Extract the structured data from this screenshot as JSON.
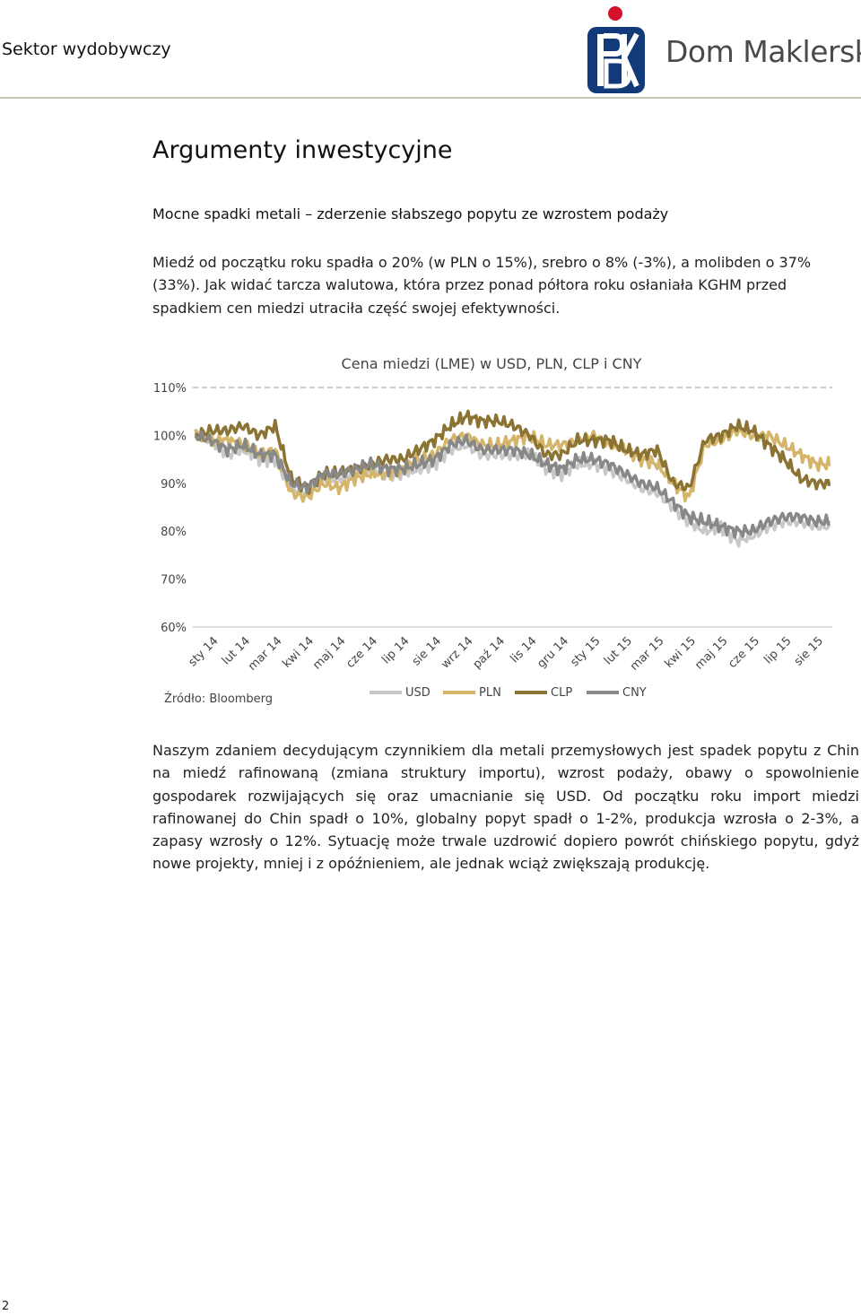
{
  "header": {
    "section": "Sektor wydobywczy",
    "brand": "Dom Maklerski",
    "logo_icon": "pko-logo-icon"
  },
  "title": "Argumenty inwestycyjne",
  "subheading": "Mocne spadki metali – zderzenie słabszego popytu ze wzrostem podaży",
  "paragraph1": "Miedź od początku roku spadła o 20% (w PLN o 15%), srebro o 8% (-3%), a molibden o 37% (33%). Jak widać tarcza walutowa, która przez ponad półtora roku osłaniała KGHM przed spadkiem cen miedzi utraciła część swojej efektywności.",
  "paragraph2": "Naszym zdaniem decydującym czynnikiem dla metali przemysłowych jest spadek popytu z Chin na miedź rafinowaną (zmiana struktury importu), wzrost podaży, obawy o spowolnienie gospodarek rozwijających się oraz umacnianie się USD. Od początku roku import miedzi rafinowanej do Chin spadł o 10%, globalny popyt spadł o 1-2%, produkcja wzrosła o 2-3%, a zapasy wzrosły o 12%. Sytuację może trwale uzdrowić dopiero powrót chińskiego popytu, gdyż nowe projekty, mniej i z opóźnieniem, ale jednak wciąż zwiększają produkcję.",
  "page_number": "2",
  "chart_data": {
    "type": "line",
    "title": "Cena miedzi (LME) w USD, PLN, CLP i CNY",
    "source": "Źródło: Bloomberg",
    "ylim": [
      60,
      110
    ],
    "ytick_values": [
      60,
      70,
      80,
      90,
      100,
      110
    ],
    "yticks": [
      "60%",
      "70%",
      "80%",
      "90%",
      "100%",
      "110%"
    ],
    "grid": "dashed line at 110% only",
    "legend_position": "bottom",
    "categories": [
      "sty 14",
      "lut 14",
      "mar 14",
      "kwi 14",
      "maj 14",
      "cze 14",
      "lip 14",
      "sie 14",
      "wrz 14",
      "paź 14",
      "lis 14",
      "gru 14",
      "sty 15",
      "lut 15",
      "mar 15",
      "kwi 15",
      "maj 15",
      "cze 15",
      "lip 15",
      "sie 15"
    ],
    "x": [
      0,
      0.5,
      1,
      1.5,
      2,
      2.5,
      3,
      3.5,
      4,
      4.5,
      5,
      5.5,
      6,
      6.5,
      7,
      7.5,
      8,
      8.5,
      9,
      9.5,
      10,
      10.5,
      11,
      11.5,
      12,
      12.5,
      13,
      13.5,
      14,
      14.5,
      15,
      15.5,
      16,
      16.5,
      17,
      17.5,
      18,
      18.5,
      19,
      19.5
    ],
    "series": [
      {
        "name": "USD",
        "color": "#c8c8c8",
        "values": [
          100,
          99,
          96,
          97,
          95,
          95,
          89,
          88,
          91,
          91,
          92,
          93,
          92,
          92,
          93,
          94,
          97,
          98,
          96,
          96,
          96,
          96,
          93,
          92,
          94,
          94,
          93,
          91,
          89,
          88,
          85,
          82,
          80,
          81,
          78,
          79,
          81,
          82,
          82,
          81
        ]
      },
      {
        "name": "PLN",
        "color": "#d4b56a",
        "values": [
          100,
          99,
          99,
          98,
          96,
          97,
          88,
          87,
          90,
          89,
          91,
          92,
          92,
          93,
          95,
          96,
          99,
          100,
          98,
          98,
          99,
          100,
          98,
          98,
          99,
          100,
          98,
          97,
          95,
          94,
          90,
          87,
          98,
          99,
          101,
          100,
          100,
          98,
          96,
          94
        ]
      },
      {
        "name": "CLP",
        "color": "#8a7333",
        "values": [
          100,
          101,
          101,
          102,
          100,
          102,
          91,
          89,
          92,
          92,
          93,
          94,
          95,
          95,
          97,
          99,
          102,
          104,
          103,
          103,
          102,
          100,
          96,
          96,
          99,
          99,
          99,
          97,
          96,
          97,
          90,
          89,
          99,
          100,
          102,
          101,
          98,
          95,
          91,
          90
        ]
      },
      {
        "name": "CNY",
        "color": "#888888",
        "values": [
          100,
          99,
          97,
          98,
          96,
          96,
          90,
          89,
          92,
          92,
          93,
          94,
          93,
          93,
          94,
          95,
          98,
          99,
          97,
          97,
          97,
          96,
          94,
          93,
          95,
          95,
          94,
          92,
          90,
          89,
          86,
          83,
          82,
          81,
          80,
          80,
          82,
          83,
          83,
          82
        ]
      }
    ]
  }
}
